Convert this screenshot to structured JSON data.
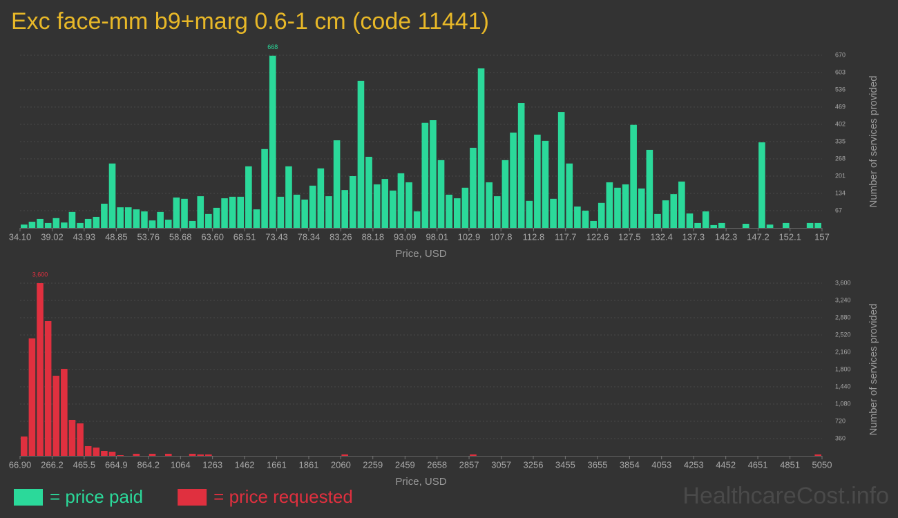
{
  "title": "Exc face-mm b9+marg 0.6-1 cm (code 11441)",
  "watermark": "HealthcareCost.info",
  "chart_data": [
    {
      "type": "histogram",
      "xlabel": "Price, USD",
      "ylabel": "Number of services provided",
      "bins": [
        34.1,
        35.33,
        36.56,
        37.79,
        39.02,
        40.25,
        41.47,
        42.7,
        43.93,
        45.16,
        46.39,
        47.62,
        48.85,
        50.08,
        51.31,
        52.54,
        53.76,
        54.99,
        56.22,
        57.45,
        58.68,
        59.91,
        61.14,
        62.37,
        63.6,
        64.83,
        66.05,
        67.28,
        68.51,
        69.74,
        70.97,
        72.2,
        73.43,
        74.66,
        75.89,
        77.12,
        78.34,
        79.57,
        80.8,
        82.03,
        83.26,
        84.49,
        85.72,
        86.95,
        88.18,
        89.41,
        90.63,
        91.86,
        93.09,
        94.32,
        95.55,
        96.78,
        98.01,
        99.24,
        100.47,
        101.7,
        102.92,
        104.15,
        105.38,
        106.61,
        107.84,
        109.07,
        110.3,
        111.53,
        112.76,
        113.99,
        115.21,
        116.44,
        117.67,
        118.9,
        120.13,
        121.36,
        122.59,
        123.82,
        125.05,
        126.28,
        127.5,
        128.73,
        129.96,
        131.19,
        132.42,
        133.65,
        134.88,
        136.11,
        137.34,
        138.57,
        139.79,
        141.02,
        142.25,
        143.48,
        144.71,
        145.94,
        147.17,
        148.4,
        149.63,
        150.86,
        152.09,
        153.32,
        154.55,
        155.77,
        157
      ],
      "series": [
        {
          "name": "= price paid",
          "color": "#2bd99a",
          "values": [
            13,
            24,
            35,
            19,
            38,
            21,
            62,
            19,
            35,
            43,
            94,
            250,
            80,
            80,
            72,
            64,
            29,
            62,
            32,
            118,
            113,
            27,
            123,
            54,
            78,
            115,
            121,
            121,
            239,
            72,
            306,
            668,
            121,
            239,
            129,
            110,
            164,
            231,
            123,
            340,
            147,
            201,
            571,
            276,
            169,
            190,
            145,
            212,
            177,
            64,
            408,
            418,
            263,
            129,
            115,
            156,
            311,
            619,
            177,
            123,
            263,
            370,
            485,
            105,
            362,
            338,
            113,
            450,
            250,
            83,
            67,
            27,
            97,
            177,
            156,
            169,
            400,
            153,
            303,
            54,
            107,
            131,
            180,
            56,
            19,
            64,
            11,
            19,
            0,
            0,
            16,
            0,
            332,
            13,
            0,
            19,
            0,
            0,
            19,
            19
          ],
          "value_labels": [
            null,
            null,
            null,
            null,
            null,
            null,
            null,
            null,
            null,
            null,
            null,
            null,
            null,
            null,
            null,
            null,
            null,
            null,
            null,
            null,
            null,
            null,
            null,
            null,
            null,
            null,
            null,
            null,
            null,
            null,
            null,
            "668",
            null,
            null,
            null,
            null,
            null,
            null,
            null,
            null,
            null,
            null,
            null,
            null,
            null,
            null,
            null,
            null,
            null,
            null,
            null,
            null,
            null,
            null,
            null,
            null,
            null,
            null,
            null,
            null,
            null,
            null,
            null,
            null,
            null,
            null,
            null,
            null,
            null,
            null,
            null,
            null,
            null,
            null,
            null,
            null,
            null,
            null,
            null,
            null,
            null,
            null,
            null,
            null,
            null,
            null,
            null,
            null,
            null,
            null,
            null,
            null,
            null,
            null,
            null,
            null,
            null,
            null,
            null,
            null
          ]
        }
      ],
      "xlim": [
        34.1,
        157
      ],
      "xticks": [
        {
          "value": 34.1,
          "label": "34.10"
        },
        39.02,
        43.93,
        48.85,
        53.76,
        58.68,
        {
          "value": 63.6,
          "label": "63.60"
        },
        68.51,
        73.43,
        78.34,
        83.26,
        88.18,
        93.09,
        98.01,
        102.9,
        107.8,
        112.8,
        117.7,
        122.6,
        127.5,
        132.4,
        137.3,
        142.3,
        147.2,
        152.1,
        157
      ],
      "ylim": [
        0,
        670
      ],
      "yticks": [
        67,
        134,
        201,
        268,
        335,
        402,
        469,
        536,
        603,
        670
      ],
      "grid": true
    },
    {
      "type": "histogram",
      "xlabel": "Price, USD",
      "ylabel": "Number of services provided",
      "bins": [
        66.9,
        116.7,
        166.6,
        216.4,
        266.2,
        316.1,
        365.9,
        415.7,
        465.5,
        515.4,
        565.2,
        615,
        664.9,
        714.7,
        764.5,
        814.4,
        864.2,
        914,
        963.9,
        1013.7,
        1063.5,
        1113.4,
        1163.2,
        1213,
        1262.9,
        1312.7,
        1362.5,
        1412.3,
        1462.2,
        1512,
        1561.8,
        1611.7,
        1661.5,
        1711.3,
        1761.2,
        1811,
        1860.8,
        1910.7,
        1960.5,
        2010.3,
        2060.1,
        2110,
        2159.8,
        2209.6,
        2259.5,
        2309.3,
        2359.1,
        2409,
        2458.8,
        2508.6,
        2558.5,
        2608.3,
        2658.1,
        2707.9,
        2757.8,
        2807.6,
        2857.4,
        2907.3,
        2957.1,
        3006.9,
        3056.8,
        3106.6,
        3156.4,
        3206.3,
        3256.1,
        3305.9,
        3355.7,
        3405.6,
        3455.4,
        3505.2,
        3555.1,
        3604.9,
        3654.7,
        3704.6,
        3754.4,
        3804.2,
        3854.1,
        3903.9,
        3953.7,
        4003.6,
        4053.4,
        4103.2,
        4153,
        4202.9,
        4252.7,
        4302.5,
        4352.4,
        4402.2,
        4452,
        4501.9,
        4551.7,
        4601.5,
        4651.4,
        4701.2,
        4751,
        4800.8,
        4850.7,
        4900.5,
        4950.3,
        5000.2,
        5050
      ],
      "series": [
        {
          "name": "= price requested",
          "color": "#e0303f",
          "values": [
            403,
            2448,
            3600,
            2808,
            1670,
            1814,
            749,
            677,
            202,
            173,
            101,
            86,
            14,
            0,
            43,
            0,
            43,
            0,
            43,
            0,
            0,
            43,
            29,
            29,
            0,
            0,
            0,
            0,
            0,
            0,
            0,
            0,
            0,
            0,
            0,
            0,
            0,
            0,
            0,
            0,
            29,
            0,
            0,
            0,
            0,
            0,
            0,
            0,
            0,
            0,
            0,
            0,
            0,
            0,
            0,
            0,
            29,
            0,
            0,
            0,
            0,
            0,
            0,
            0,
            0,
            0,
            0,
            0,
            0,
            0,
            0,
            0,
            0,
            0,
            0,
            0,
            0,
            0,
            0,
            0,
            0,
            0,
            0,
            0,
            0,
            0,
            0,
            0,
            0,
            0,
            0,
            0,
            0,
            0,
            0,
            0,
            0,
            0,
            0,
            29
          ],
          "value_labels": [
            null,
            null,
            "3,600",
            null,
            null,
            null,
            null,
            null,
            null,
            null,
            null,
            null,
            null,
            null,
            null,
            null,
            null,
            null,
            null,
            null,
            null,
            null,
            null,
            null,
            null,
            null,
            null,
            null,
            null,
            null,
            null,
            null,
            null,
            null,
            null,
            null,
            null,
            null,
            null,
            null,
            null,
            null,
            null,
            null,
            null,
            null,
            null,
            null,
            null,
            null,
            null,
            null,
            null,
            null,
            null,
            null,
            null,
            null,
            null,
            null,
            null,
            null,
            null,
            null,
            null,
            null,
            null,
            null,
            null,
            null,
            null,
            null,
            null,
            null,
            null,
            null,
            null,
            null,
            null,
            null,
            null,
            null,
            null,
            null,
            null,
            null,
            null,
            null,
            null,
            null,
            null,
            null,
            null,
            null,
            null,
            null,
            null,
            null,
            null,
            null
          ]
        }
      ],
      "xlim": [
        66.9,
        5050
      ],
      "xticks": [
        {
          "value": 66.9,
          "label": "66.90"
        },
        266.2,
        465.5,
        664.9,
        864.2,
        1064,
        1263,
        1462,
        1661,
        1861,
        2060,
        2259,
        2459,
        2658,
        2857,
        3057,
        3256,
        3455,
        3655,
        3854,
        4053,
        4253,
        4452,
        4651,
        4851,
        5050
      ],
      "ylim": [
        0,
        3600
      ],
      "yticks": [
        360,
        720,
        {
          "value": 1080,
          "label": "1,080"
        },
        {
          "value": 1440,
          "label": "1,440"
        },
        {
          "value": 1800,
          "label": "1,800"
        },
        {
          "value": 2160,
          "label": "2,160"
        },
        {
          "value": 2520,
          "label": "2,520"
        },
        {
          "value": 2880,
          "label": "2,880"
        },
        {
          "value": 3240,
          "label": "3,240"
        },
        {
          "value": 3600,
          "label": "3,600"
        }
      ],
      "grid": true
    }
  ]
}
